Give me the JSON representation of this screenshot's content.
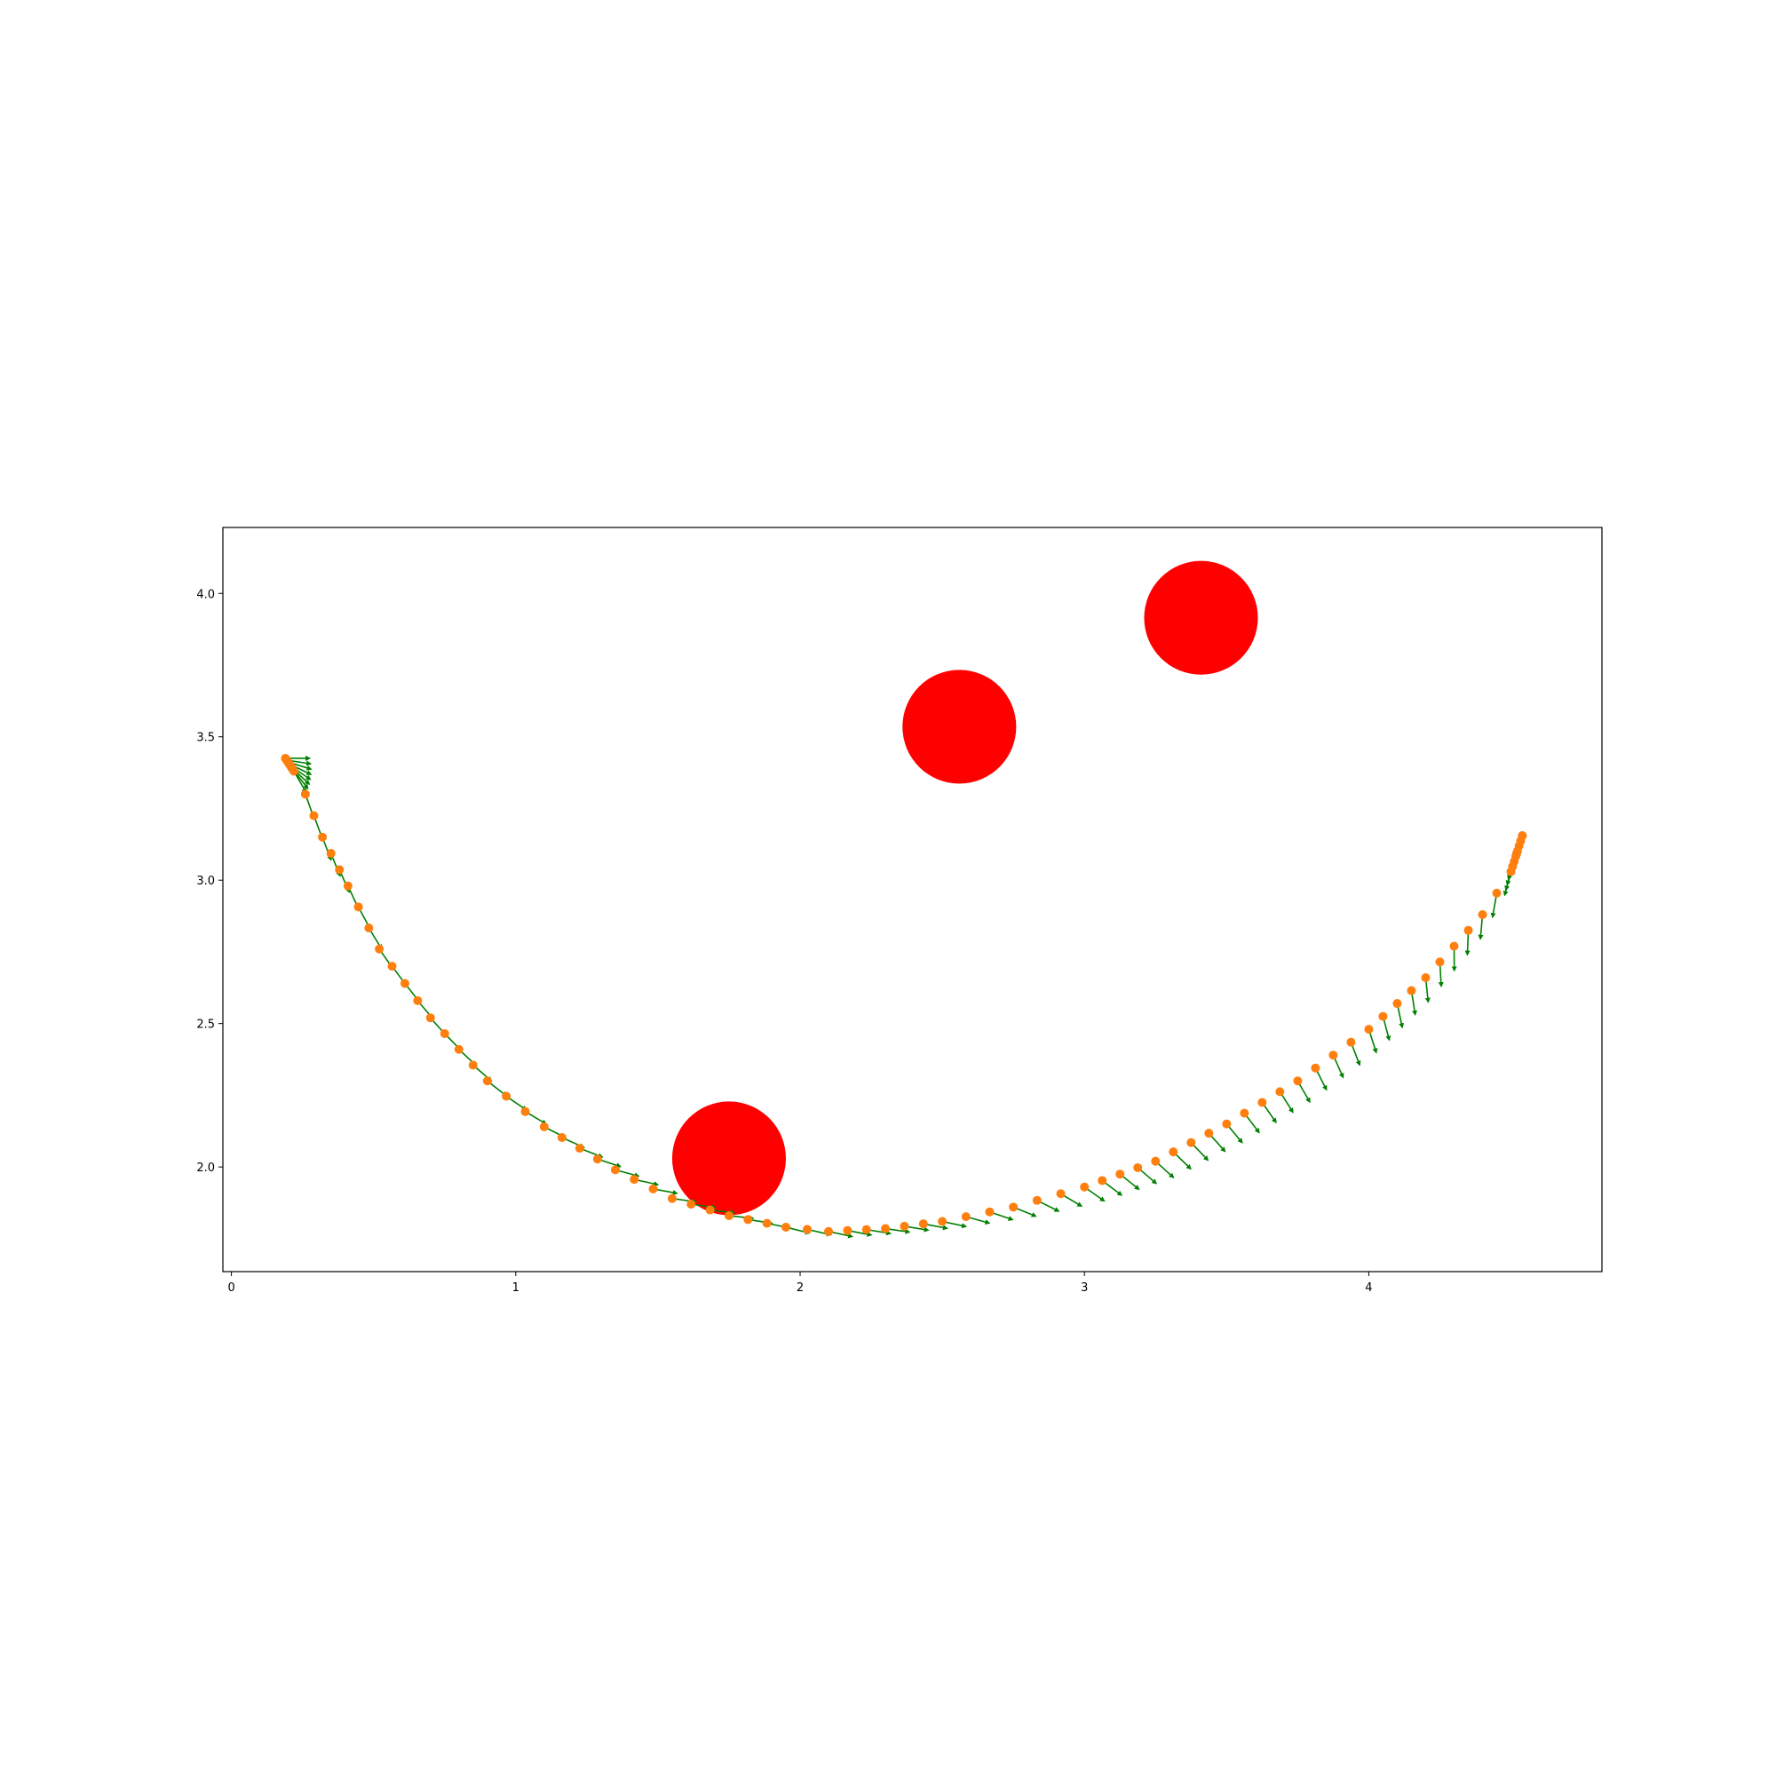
{
  "chart_data": {
    "type": "scatter",
    "title": "",
    "xlabel": "",
    "ylabel": "",
    "xlim": [
      -0.03,
      4.82
    ],
    "ylim": [
      1.635,
      4.23
    ],
    "x_ticks": [
      0,
      1,
      2,
      3,
      4
    ],
    "x_tick_labels": [
      "0",
      "1",
      "2",
      "3",
      "4"
    ],
    "y_ticks": [
      2.0,
      2.5,
      3.0,
      3.5,
      4.0
    ],
    "y_tick_labels": [
      "2.0",
      "2.5",
      "3.0",
      "3.5",
      "4.0"
    ],
    "grid": false,
    "legend": "none",
    "colors": {
      "obstacle": "#ff0000",
      "path_point": "#ff7f0e",
      "goal_point": "#1f77b4",
      "heading_arrow": "#008000",
      "axes": "#000000"
    },
    "obstacles": [
      {
        "x": 1.75,
        "y": 2.03,
        "r": 0.2
      },
      {
        "x": 2.56,
        "y": 3.535,
        "r": 0.2
      },
      {
        "x": 3.41,
        "y": 3.915,
        "r": 0.2
      }
    ],
    "goal": {
      "x": 4.54,
      "y": 3.155
    },
    "heading_arrow_length": 0.085,
    "trajectory_anchor_points": [
      {
        "x": 0.19,
        "y": 3.425,
        "heading_deg": 0
      },
      {
        "x": 0.22,
        "y": 3.38,
        "heading_deg": -60
      },
      {
        "x": 0.26,
        "y": 3.3,
        "heading_deg": -70
      },
      {
        "x": 0.32,
        "y": 3.15,
        "heading_deg": -69
      },
      {
        "x": 0.41,
        "y": 2.98,
        "heading_deg": -65
      },
      {
        "x": 0.52,
        "y": 2.76,
        "heading_deg": -55
      },
      {
        "x": 0.7,
        "y": 2.52,
        "heading_deg": -48
      },
      {
        "x": 0.9,
        "y": 2.3,
        "heading_deg": -38
      },
      {
        "x": 1.1,
        "y": 2.14,
        "heading_deg": -27
      },
      {
        "x": 1.35,
        "y": 1.99,
        "heading_deg": -15
      },
      {
        "x": 1.55,
        "y": 1.89,
        "heading_deg": -8
      },
      {
        "x": 1.75,
        "y": 1.83,
        "heading_deg": -6
      },
      {
        "x": 1.95,
        "y": 1.79,
        "heading_deg": -14
      },
      {
        "x": 2.1,
        "y": 1.775,
        "heading_deg": -12
      },
      {
        "x": 2.3,
        "y": 1.785,
        "heading_deg": -8
      },
      {
        "x": 2.5,
        "y": 1.81,
        "heading_deg": -12
      },
      {
        "x": 2.75,
        "y": 1.86,
        "heading_deg": -22
      },
      {
        "x": 3.0,
        "y": 1.93,
        "heading_deg": -35
      },
      {
        "x": 3.25,
        "y": 2.02,
        "heading_deg": -42
      },
      {
        "x": 3.5,
        "y": 2.15,
        "heading_deg": -50
      },
      {
        "x": 3.75,
        "y": 2.3,
        "heading_deg": -60
      },
      {
        "x": 4.0,
        "y": 2.48,
        "heading_deg": -72
      },
      {
        "x": 4.2,
        "y": 2.66,
        "heading_deg": -84
      },
      {
        "x": 4.4,
        "y": 2.88,
        "heading_deg": -95
      },
      {
        "x": 4.5,
        "y": 3.03,
        "heading_deg": -105
      },
      {
        "x": 4.54,
        "y": 3.155,
        "heading_deg": -112
      }
    ]
  }
}
